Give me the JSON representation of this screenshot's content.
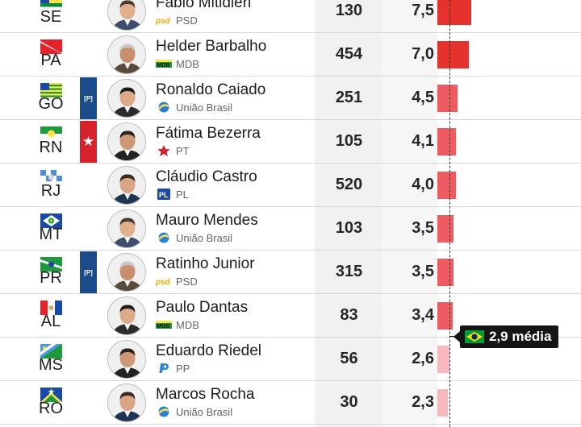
{
  "colors": {
    "bar_dark": "#e5322d",
    "bar_mid": "#ee5b60",
    "bar_light": "#f7b8bd",
    "column_bg": "#f1f1f1",
    "avg_badge_bg": "#151515"
  },
  "max_percent": 8.0,
  "average": {
    "label": "2,9 média",
    "value": 2.9,
    "icon": "brazil-flag-icon"
  },
  "rows": [
    {
      "uf": "SE",
      "name": "Fábio Mitidieri",
      "party": "PSD",
      "party_logo": "psd-logo",
      "count": "130",
      "percent_label": "7,5",
      "percent": 7.5,
      "tag": "",
      "tag_color": "",
      "flag": "flag-se",
      "bar_color": "#e5322d"
    },
    {
      "uf": "PA",
      "name": "Helder Barbalho",
      "party": "MDB",
      "party_logo": "mdb-logo",
      "count": "454",
      "percent_label": "7,0",
      "percent": 7.0,
      "tag": "",
      "tag_color": "",
      "flag": "flag-pa",
      "bar_color": "#e5322d"
    },
    {
      "uf": "GO",
      "name": "Ronaldo Caiado",
      "party": "União Brasil",
      "party_logo": "uniao-logo",
      "count": "251",
      "percent_label": "4,5",
      "percent": 4.5,
      "tag": "[P]",
      "tag_color": "blue",
      "flag": "flag-go",
      "bar_color": "#ee5b60"
    },
    {
      "uf": "RN",
      "name": "Fátima Bezerra",
      "party": "PT",
      "party_logo": "pt-logo",
      "count": "105",
      "percent_label": "4,1",
      "percent": 4.1,
      "tag": "★",
      "tag_color": "red",
      "flag": "flag-rn",
      "bar_color": "#ee5b60"
    },
    {
      "uf": "RJ",
      "name": "Cláudio Castro",
      "party": "PL",
      "party_logo": "pl-logo",
      "count": "520",
      "percent_label": "4,0",
      "percent": 4.0,
      "tag": "",
      "tag_color": "",
      "flag": "flag-rj",
      "bar_color": "#ee5b60"
    },
    {
      "uf": "MT",
      "name": "Mauro Mendes",
      "party": "União Brasil",
      "party_logo": "uniao-logo",
      "count": "103",
      "percent_label": "3,5",
      "percent": 3.5,
      "tag": "",
      "tag_color": "",
      "flag": "flag-mt",
      "bar_color": "#ee5b60"
    },
    {
      "uf": "PR",
      "name": "Ratinho Junior",
      "party": "PSD",
      "party_logo": "psd-logo",
      "count": "315",
      "percent_label": "3,5",
      "percent": 3.5,
      "tag": "[P]",
      "tag_color": "blue",
      "flag": "flag-pr",
      "bar_color": "#ee5b60"
    },
    {
      "uf": "AL",
      "name": "Paulo Dantas",
      "party": "MDB",
      "party_logo": "mdb-logo",
      "count": "83",
      "percent_label": "3,4",
      "percent": 3.4,
      "tag": "",
      "tag_color": "",
      "flag": "flag-al",
      "bar_color": "#ee5b60"
    },
    {
      "uf": "MS",
      "name": "Eduardo Riedel",
      "party": "PP",
      "party_logo": "pp-logo",
      "count": "56",
      "percent_label": "2,6",
      "percent": 2.6,
      "tag": "",
      "tag_color": "",
      "flag": "flag-ms",
      "bar_color": "#f7b8bd"
    },
    {
      "uf": "RO",
      "name": "Marcos Rocha",
      "party": "União Brasil",
      "party_logo": "uniao-logo",
      "count": "30",
      "percent_label": "2,3",
      "percent": 2.3,
      "tag": "",
      "tag_color": "",
      "flag": "flag-ro",
      "bar_color": "#f7b8bd"
    }
  ]
}
